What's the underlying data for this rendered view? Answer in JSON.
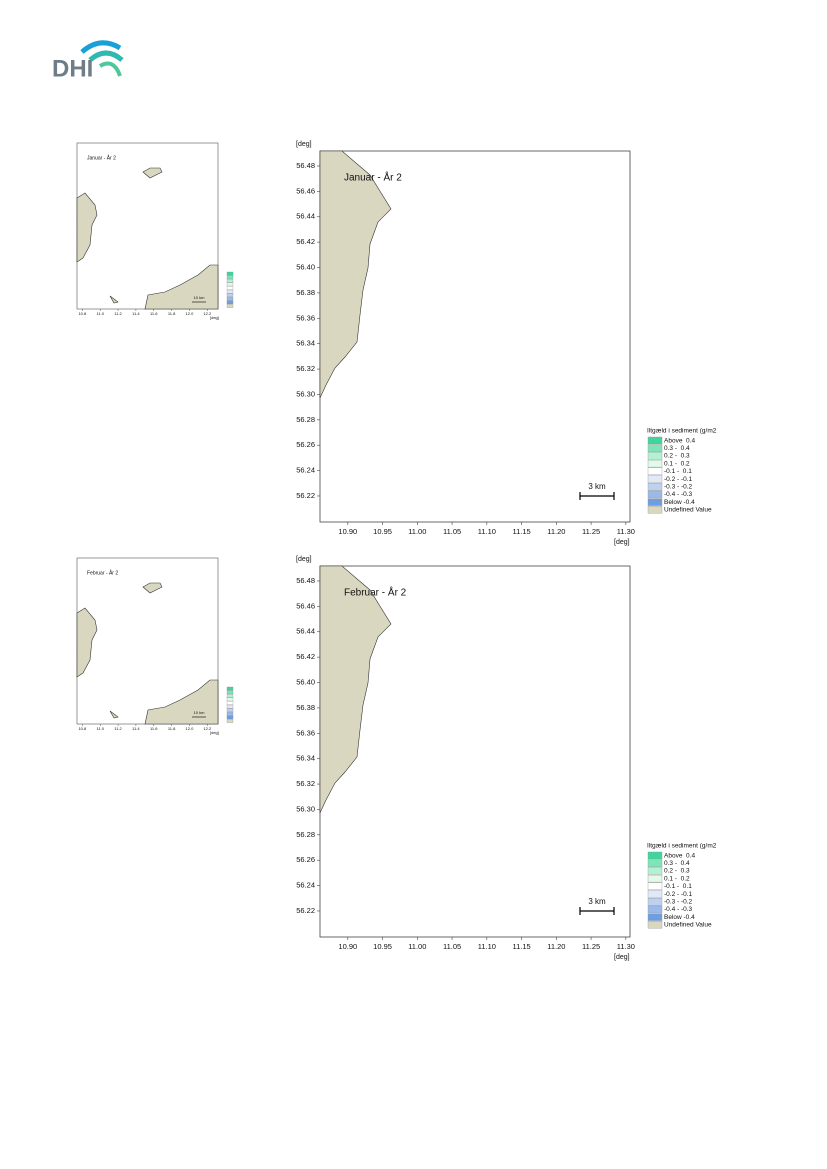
{
  "logo": "DHI",
  "maps": [
    {
      "small": {
        "title": "Januar - År 2",
        "scale": "10 km",
        "unit": "[deg]",
        "xticks": [
          {
            "value": 10.8,
            "label": "10.8"
          },
          {
            "value": 11,
            "label": "11.0"
          },
          {
            "value": 11.2,
            "label": "11.2"
          },
          {
            "value": 11.4,
            "label": "11.4"
          },
          {
            "value": 11.6,
            "label": "11.6"
          },
          {
            "value": 11.8,
            "label": "11.8"
          },
          {
            "value": 12,
            "label": "12.0"
          },
          {
            "value": 12.2,
            "label": "12.2"
          }
        ],
        "xlim": [
          10.74,
          12.32
        ]
      },
      "large": {
        "title": "Januar - År 2",
        "y_unit": "[deg]",
        "x_unit": "[deg]",
        "scale": "3 km",
        "xlim": [
          10.86,
          11.306
        ],
        "ylim": [
          56.1995,
          56.4918
        ],
        "xticks": [
          {
            "value": 10.9,
            "label": "10.90"
          },
          {
            "value": 10.95,
            "label": "10.95"
          },
          {
            "value": 11,
            "label": "11.00"
          },
          {
            "value": 11.05,
            "label": "11.05"
          },
          {
            "value": 11.1,
            "label": "11.10"
          },
          {
            "value": 11.15,
            "label": "11.15"
          },
          {
            "value": 11.2,
            "label": "11.20"
          },
          {
            "value": 11.25,
            "label": "11.25"
          },
          {
            "value": 11.3,
            "label": "11.30"
          }
        ],
        "yticks": [
          56.48,
          56.46,
          56.44,
          56.42,
          {
            "value": 56.4,
            "label": "56.40"
          },
          56.38,
          56.36,
          56.34,
          56.32,
          {
            "value": 56.3,
            "label": "56.30"
          },
          56.28,
          56.26,
          56.24,
          56.22
        ],
        "legend": {
          "title": "Iltgæld i sediment (g/m2",
          "items": [
            {
              "label": "Above  0.4",
              "color": "#3ed69c"
            },
            {
              "label": "0.3 -  0.4",
              "color": "#7de6b9"
            },
            {
              "label": "0.2 -  0.3",
              "color": "#b3f1d3"
            },
            {
              "label": "0.1 -  0.2",
              "color": "#e2f9ec"
            },
            {
              "label": "-0.1 -  0.1",
              "color": "#ffffff"
            },
            {
              "label": "-0.2 - -0.1",
              "color": "#e0e9f8"
            },
            {
              "label": "-0.3 - -0.2",
              "color": "#bdd1f1"
            },
            {
              "label": "-0.4 - -0.3",
              "color": "#9bb9eb"
            },
            {
              "label": "Below -0.4",
              "color": "#6e9ee2"
            },
            {
              "label": "Undefined Value",
              "color": "#d9d7c0"
            }
          ]
        }
      }
    },
    {
      "small": {
        "title": "Februar - År 2",
        "scale": "10 km",
        "unit": "[deg]",
        "xticks": [
          {
            "value": 10.8,
            "label": "10.8"
          },
          {
            "value": 11,
            "label": "11.0"
          },
          {
            "value": 11.2,
            "label": "11.2"
          },
          {
            "value": 11.4,
            "label": "11.4"
          },
          {
            "value": 11.6,
            "label": "11.6"
          },
          {
            "value": 11.8,
            "label": "11.8"
          },
          {
            "value": 12,
            "label": "12.0"
          },
          {
            "value": 12.2,
            "label": "12.2"
          }
        ],
        "xlim": [
          10.74,
          12.32
        ]
      },
      "large": {
        "title": "Februar - År 2",
        "y_unit": "[deg]",
        "x_unit": "[deg]",
        "scale": "3 km",
        "xlim": [
          10.86,
          11.306
        ],
        "ylim": [
          56.1995,
          56.4918
        ],
        "xticks": [
          {
            "value": 10.9,
            "label": "10.90"
          },
          {
            "value": 10.95,
            "label": "10.95"
          },
          {
            "value": 11,
            "label": "11.00"
          },
          {
            "value": 11.05,
            "label": "11.05"
          },
          {
            "value": 11.1,
            "label": "11.10"
          },
          {
            "value": 11.15,
            "label": "11.15"
          },
          {
            "value": 11.2,
            "label": "11.20"
          },
          {
            "value": 11.25,
            "label": "11.25"
          },
          {
            "value": 11.3,
            "label": "11.30"
          }
        ],
        "yticks": [
          56.48,
          56.46,
          56.44,
          56.42,
          {
            "value": 56.4,
            "label": "56.40"
          },
          56.38,
          56.36,
          56.34,
          56.32,
          {
            "value": 56.3,
            "label": "56.30"
          },
          56.28,
          56.26,
          56.24,
          56.22
        ],
        "legend": {
          "title": "Iltgæld i sediment (g/m2",
          "items": [
            {
              "label": "Above  0.4",
              "color": "#3ed69c"
            },
            {
              "label": "0.3 -  0.4",
              "color": "#7de6b9"
            },
            {
              "label": "0.2 -  0.3",
              "color": "#b3f1d3"
            },
            {
              "label": "0.1 -  0.2",
              "color": "#e2f9ec"
            },
            {
              "label": "-0.1 -  0.1",
              "color": "#ffffff"
            },
            {
              "label": "-0.2 - -0.1",
              "color": "#e0e9f8"
            },
            {
              "label": "-0.3 - -0.2",
              "color": "#bdd1f1"
            },
            {
              "label": "-0.4 - -0.3",
              "color": "#9bb9eb"
            },
            {
              "label": "Below -0.4",
              "color": "#6e9ee2"
            },
            {
              "label": "Undefined Value",
              "color": "#d9d7c0"
            }
          ]
        }
      }
    }
  ]
}
